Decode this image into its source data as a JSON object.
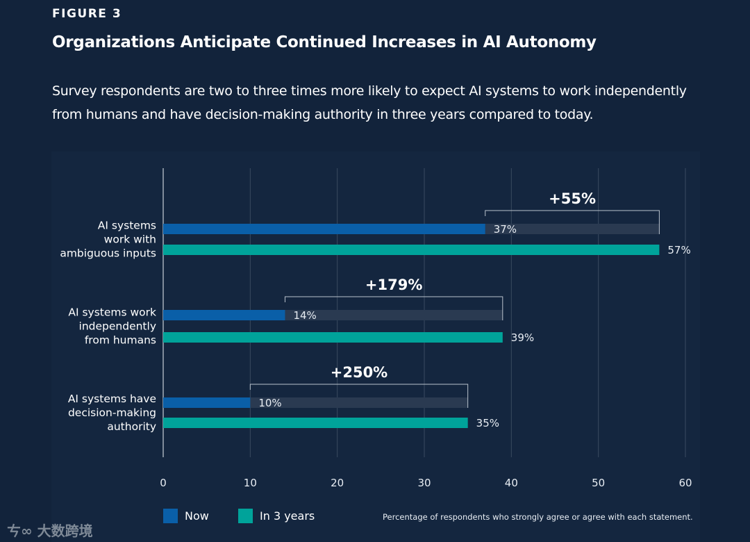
{
  "figure_label": "FIGURE 3",
  "title": "Organizations Anticipate Continued Increases in AI Autonomy",
  "subtitle": "Survey respondents are two to three times more likely to expect AI systems to work independently from humans and have decision-making authority in three years compared to today.",
  "footnote": "Percentage of respondents who strongly agree or agree with each statement.",
  "watermark": "大数跨境",
  "colors": {
    "now": "#0a5fa8",
    "in3": "#00a39a",
    "ghost": "#2a3a51",
    "grid": "#3a4a60",
    "bracket": "#b9c2cc"
  },
  "chart_data": {
    "type": "bar",
    "orientation": "horizontal",
    "title": "Organizations Anticipate Continued Increases in AI Autonomy",
    "categories": [
      [
        "AI systems",
        "work with",
        "ambiguous inputs"
      ],
      [
        "AI systems work",
        "independently",
        "from humans"
      ],
      [
        "AI systems have",
        "decision-making",
        "authority"
      ]
    ],
    "series": [
      {
        "name": "Now",
        "values": [
          37,
          14,
          10
        ]
      },
      {
        "name": "In 3 years",
        "values": [
          57,
          39,
          35
        ]
      }
    ],
    "value_labels": {
      "Now": [
        "37%",
        "14%",
        "10%"
      ],
      "In 3 years": [
        "57%",
        "39%",
        "35%"
      ]
    },
    "annotations": [
      "+55%",
      "+179%",
      "+250%"
    ],
    "xlim": [
      0,
      60
    ],
    "xticks": [
      0,
      10,
      20,
      30,
      40,
      50,
      60
    ],
    "grid": true,
    "legend": "bottom-left"
  }
}
